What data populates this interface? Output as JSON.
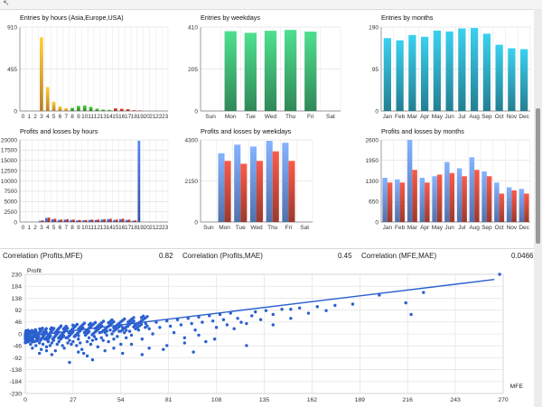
{
  "window": {
    "corner_glyph": "↖",
    "accent": "#2f8fd1"
  },
  "correlations": [
    {
      "label": "Correlation (Profits,MFE)",
      "value": "0.82"
    },
    {
      "label": "Correlation (Profits,MAE)",
      "value": "0.45"
    },
    {
      "label": "Correlation (MFE,MAE)",
      "value": "0.0466"
    }
  ],
  "chart_data": [
    {
      "id": "hours-entries",
      "type": "bar",
      "title": "Entries by hours (Asia,Europe,USA)",
      "ylim": [
        0,
        910
      ],
      "yticks": [
        "910",
        "455",
        "0"
      ],
      "categories": [
        "0",
        "1",
        "2",
        "3",
        "4",
        "5",
        "6",
        "7",
        "8",
        "9",
        "10",
        "11",
        "12",
        "13",
        "14",
        "15",
        "16",
        "17",
        "18",
        "19",
        "20",
        "21",
        "22",
        "23"
      ],
      "xlabels": [
        "0",
        "1",
        "2",
        "3",
        "4",
        "5",
        "6",
        "7",
        "8",
        "9",
        "10",
        "11",
        "12",
        "13",
        "14",
        "15",
        "16",
        "17",
        "18",
        "19",
        "20",
        "21",
        "22",
        "23"
      ],
      "values": [
        0,
        0,
        0,
        800,
        260,
        100,
        50,
        30,
        35,
        55,
        60,
        45,
        25,
        15,
        12,
        30,
        25,
        20,
        8,
        6,
        0,
        0,
        0,
        0
      ],
      "colors": [
        "#e39a2d",
        "#e39a2d",
        "#e39a2d",
        "#e39a2d",
        "#e39a2d",
        "#e39a2d",
        "#e39a2d",
        "#e39a2d",
        "#3a9a2e",
        "#3a9a2e",
        "#3a9a2e",
        "#3a9a2e",
        "#3a9a2e",
        "#3a9a2e",
        "#3a9a2e",
        "#b23a2a",
        "#b23a2a",
        "#b23a2a",
        "#b23a2a",
        "#b23a2a",
        "#b23a2a",
        "#b23a2a",
        "#b23a2a",
        "#b23a2a"
      ],
      "grid": true
    },
    {
      "id": "weekday-entries",
      "type": "bar",
      "title": "Entries by weekdays",
      "ylim": [
        0,
        410
      ],
      "yticks": [
        "410",
        "205",
        "0"
      ],
      "categories": [
        "Sun",
        "Mon",
        "Tue",
        "Wed",
        "Thu",
        "Fri",
        "Sat"
      ],
      "xlabels": [
        "Sun",
        "Mon",
        "Tue",
        "Wed",
        "Thu",
        "Fri",
        "Sat"
      ],
      "values": [
        0,
        390,
        382,
        392,
        396,
        388,
        0
      ],
      "colors": [
        "#3aa66a"
      ],
      "grid": true
    },
    {
      "id": "month-entries",
      "type": "bar",
      "title": "Entries by months",
      "ylim": [
        0,
        190
      ],
      "yticks": [
        "190",
        "95",
        "0"
      ],
      "categories": [
        "Jan",
        "Feb",
        "Mar",
        "Apr",
        "May",
        "Jun",
        "Jul",
        "Aug",
        "Sep",
        "Oct",
        "Nov",
        "Dec"
      ],
      "xlabels": [
        "Jan",
        "Feb",
        "Mar",
        "Apr",
        "May",
        "Jun",
        "Jul",
        "Aug",
        "Sep",
        "Oct",
        "Nov",
        "Dec"
      ],
      "values": [
        165,
        160,
        172,
        168,
        182,
        180,
        187,
        188,
        175,
        150,
        142,
        140
      ],
      "colors": [
        "#2b9bb2"
      ],
      "grid": true
    },
    {
      "id": "hours-pl",
      "type": "bar",
      "title": "Profits and losses by hours",
      "ylim": [
        0,
        20000
      ],
      "yticks": [
        "20000",
        "17500",
        "15000",
        "12500",
        "10000",
        "7500",
        "5000",
        "2500",
        "0"
      ],
      "categories": [
        "0",
        "1",
        "2",
        "3",
        "4",
        "5",
        "6",
        "7",
        "8",
        "9",
        "10",
        "11",
        "12",
        "13",
        "14",
        "15",
        "16",
        "17",
        "18",
        "19",
        "20",
        "21",
        "22",
        "23"
      ],
      "xlabels": [
        "0",
        "1",
        "2",
        "3",
        "4",
        "5",
        "6",
        "7",
        "8",
        "9",
        "10",
        "11",
        "12",
        "13",
        "14",
        "15",
        "16",
        "17",
        "18",
        "19",
        "20",
        "21",
        "22",
        "23"
      ],
      "series": [
        {
          "values": [
            0,
            0,
            0,
            300,
            1000,
            700,
            500,
            600,
            500,
            400,
            400,
            500,
            500,
            600,
            700,
            500,
            700,
            500,
            300,
            19800,
            0,
            0,
            0,
            0
          ],
          "color": "#4169c8"
        },
        {
          "values": [
            0,
            0,
            0,
            400,
            1100,
            800,
            600,
            700,
            600,
            500,
            500,
            600,
            600,
            700,
            800,
            600,
            800,
            600,
            400,
            0,
            0,
            0,
            0,
            0
          ],
          "color": "#b83a2a"
        }
      ],
      "grid": true
    },
    {
      "id": "weekday-pl",
      "type": "bar",
      "title": "Profits and losses by weekdays",
      "ylim": [
        0,
        4300
      ],
      "yticks": [
        "4300",
        "2150",
        "0"
      ],
      "categories": [
        "Sun",
        "Mon",
        "Tue",
        "Wed",
        "Thu",
        "Fri",
        "Sat"
      ],
      "xlabels": [
        "Sun",
        "Mon",
        "Tue",
        "Wed",
        "Thu",
        "Fri",
        "Sat"
      ],
      "series": [
        {
          "values": [
            0,
            3600,
            4050,
            3950,
            4250,
            4150,
            0
          ],
          "color": "#6a8fdc"
        },
        {
          "values": [
            0,
            3200,
            3050,
            3200,
            3700,
            3200,
            0
          ],
          "color": "#c8493a"
        }
      ],
      "grid": true
    },
    {
      "id": "month-pl",
      "type": "bar",
      "title": "Profits and losses by months",
      "ylim": [
        0,
        2600
      ],
      "yticks": [
        "2600",
        "1950",
        "1300",
        "650",
        "0"
      ],
      "categories": [
        "Jan",
        "Feb",
        "Mar",
        "Apr",
        "May",
        "Jun",
        "Jul",
        "Aug",
        "Sep",
        "Oct",
        "Nov",
        "Dec"
      ],
      "xlabels": [
        "Jan",
        "Feb",
        "Mar",
        "Apr",
        "May",
        "Jun",
        "Jul",
        "Aug",
        "Sep",
        "Oct",
        "Nov",
        "Dec"
      ],
      "series": [
        {
          "values": [
            1400,
            1350,
            2600,
            1400,
            1450,
            1900,
            1700,
            2050,
            1600,
            1250,
            1100,
            1050
          ],
          "color": "#6a8fdc"
        },
        {
          "values": [
            1250,
            1250,
            1650,
            1250,
            1500,
            1550,
            1450,
            1650,
            1450,
            900,
            1000,
            900
          ],
          "color": "#c8493a"
        }
      ],
      "grid": true
    },
    {
      "id": "profit-mfe",
      "type": "scatter",
      "ylabel": "Profit",
      "xlabel": "MFE",
      "xlim": [
        0,
        270
      ],
      "ylim": [
        -230,
        230
      ],
      "xticks": [
        "0",
        "27",
        "54",
        "81",
        "108",
        "135",
        "162",
        "189",
        "216",
        "243",
        "270"
      ],
      "yticks": [
        "230",
        "184",
        "138",
        "92",
        "46",
        "0",
        "-46",
        "-92",
        "-138",
        "-184",
        "-230"
      ],
      "trend": [
        [
          0,
          -10
        ],
        [
          265,
          210
        ]
      ],
      "point_color": "#2a5fcf",
      "points": [
        [
          2,
          -20
        ],
        [
          3,
          -40
        ],
        [
          4,
          -55
        ],
        [
          5,
          -30
        ],
        [
          6,
          -45
        ],
        [
          7,
          -25
        ],
        [
          8,
          -35
        ],
        [
          9,
          -60
        ],
        [
          10,
          -40
        ],
        [
          11,
          -20
        ],
        [
          12,
          -50
        ],
        [
          13,
          -30
        ],
        [
          14,
          -45
        ],
        [
          15,
          -35
        ],
        [
          16,
          -25
        ],
        [
          17,
          -65
        ],
        [
          18,
          -40
        ],
        [
          19,
          -30
        ],
        [
          20,
          -20
        ],
        [
          21,
          -45
        ],
        [
          22,
          -55
        ],
        [
          23,
          -15
        ],
        [
          24,
          -35
        ],
        [
          25,
          -25
        ],
        [
          26,
          -40
        ],
        [
          27,
          -30
        ],
        [
          28,
          -10
        ],
        [
          29,
          -45
        ],
        [
          30,
          -20
        ],
        [
          31,
          -35
        ],
        [
          32,
          -60
        ],
        [
          33,
          -75
        ],
        [
          34,
          -5
        ],
        [
          35,
          -30
        ],
        [
          36,
          -15
        ],
        [
          37,
          -40
        ],
        [
          38,
          -25
        ],
        [
          39,
          -10
        ],
        [
          40,
          -20
        ],
        [
          41,
          -50
        ],
        [
          42,
          5
        ],
        [
          43,
          -15
        ],
        [
          44,
          -25
        ],
        [
          45,
          10
        ],
        [
          46,
          -5
        ],
        [
          47,
          -30
        ],
        [
          48,
          15
        ],
        [
          49,
          0
        ],
        [
          50,
          -20
        ],
        [
          51,
          20
        ],
        [
          52,
          -10
        ],
        [
          53,
          10
        ],
        [
          54,
          -40
        ],
        [
          55,
          25
        ],
        [
          56,
          5
        ],
        [
          57,
          -15
        ],
        [
          58,
          30
        ],
        [
          59,
          10
        ],
        [
          60,
          -5
        ],
        [
          62,
          35
        ],
        [
          64,
          15
        ],
        [
          66,
          -20
        ],
        [
          68,
          40
        ],
        [
          70,
          20
        ],
        [
          72,
          0
        ],
        [
          74,
          45
        ],
        [
          76,
          25
        ],
        [
          78,
          -60
        ],
        [
          80,
          50
        ],
        [
          82,
          30
        ],
        [
          84,
          5
        ],
        [
          86,
          55
        ],
        [
          88,
          35
        ],
        [
          90,
          -35
        ],
        [
          92,
          60
        ],
        [
          94,
          40
        ],
        [
          96,
          15
        ],
        [
          98,
          65
        ],
        [
          100,
          45
        ],
        [
          102,
          -30
        ],
        [
          104,
          70
        ],
        [
          106,
          50
        ],
        [
          108,
          25
        ],
        [
          110,
          75
        ],
        [
          112,
          55
        ],
        [
          114,
          35
        ],
        [
          116,
          80
        ],
        [
          118,
          20
        ],
        [
          120,
          60
        ],
        [
          122,
          45
        ],
        [
          125,
          40
        ],
        [
          128,
          70
        ],
        [
          130,
          85
        ],
        [
          133,
          55
        ],
        [
          136,
          90
        ],
        [
          140,
          75
        ],
        [
          145,
          95
        ],
        [
          150,
          60
        ],
        [
          155,
          100
        ],
        [
          160,
          80
        ],
        [
          165,
          105
        ],
        [
          170,
          90
        ],
        [
          175,
          110
        ],
        [
          185,
          115
        ],
        [
          200,
          150
        ],
        [
          215,
          120
        ],
        [
          218,
          75
        ],
        [
          225,
          160
        ],
        [
          268,
          230
        ],
        [
          95,
          -70
        ],
        [
          107,
          -20
        ],
        [
          125,
          -45
        ],
        [
          140,
          35
        ],
        [
          150,
          95
        ],
        [
          55,
          -75
        ],
        [
          45,
          -65
        ],
        [
          35,
          -85
        ],
        [
          25,
          -110
        ],
        [
          15,
          -80
        ],
        [
          50,
          -55
        ],
        [
          60,
          -40
        ],
        [
          70,
          -55
        ],
        [
          80,
          -45
        ],
        [
          90,
          -15
        ],
        [
          98,
          -5
        ],
        [
          66,
          -80
        ],
        [
          38,
          -100
        ],
        [
          30,
          -70
        ],
        [
          12,
          -65
        ],
        [
          8,
          -75
        ]
      ],
      "grid": true
    }
  ]
}
